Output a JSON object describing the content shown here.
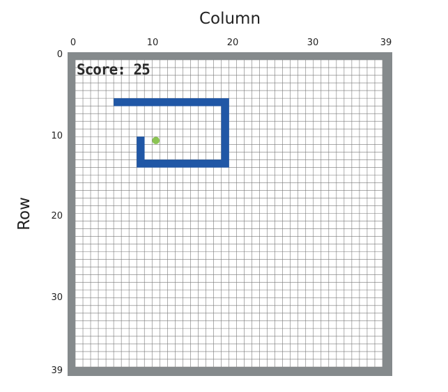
{
  "axes": {
    "column_title": "Column",
    "row_title": "Row",
    "column_ticks": [
      "0",
      "10",
      "20",
      "30",
      "39"
    ],
    "row_ticks": [
      "0",
      "10",
      "20",
      "30",
      "39"
    ]
  },
  "game": {
    "score_text": "Score: 25",
    "grid_size": 40,
    "snake_color": "#2057a6",
    "food_color": "#8bc453",
    "board_border_color": "#858a8c",
    "grid_line_color": "#777777",
    "food": {
      "col": 10,
      "row": 10
    },
    "snake_cells": [
      [
        5,
        5
      ],
      [
        6,
        5
      ],
      [
        7,
        5
      ],
      [
        8,
        5
      ],
      [
        9,
        5
      ],
      [
        10,
        5
      ],
      [
        11,
        5
      ],
      [
        12,
        5
      ],
      [
        13,
        5
      ],
      [
        14,
        5
      ],
      [
        15,
        5
      ],
      [
        16,
        5
      ],
      [
        17,
        5
      ],
      [
        18,
        5
      ],
      [
        19,
        5
      ],
      [
        19,
        6
      ],
      [
        19,
        7
      ],
      [
        19,
        8
      ],
      [
        19,
        9
      ],
      [
        19,
        10
      ],
      [
        19,
        11
      ],
      [
        19,
        12
      ],
      [
        19,
        13
      ],
      [
        18,
        13
      ],
      [
        17,
        13
      ],
      [
        16,
        13
      ],
      [
        15,
        13
      ],
      [
        14,
        13
      ],
      [
        13,
        13
      ],
      [
        12,
        13
      ],
      [
        11,
        13
      ],
      [
        10,
        13
      ],
      [
        9,
        13
      ],
      [
        8,
        13
      ],
      [
        8,
        12
      ],
      [
        8,
        11
      ],
      [
        8,
        10
      ]
    ]
  }
}
